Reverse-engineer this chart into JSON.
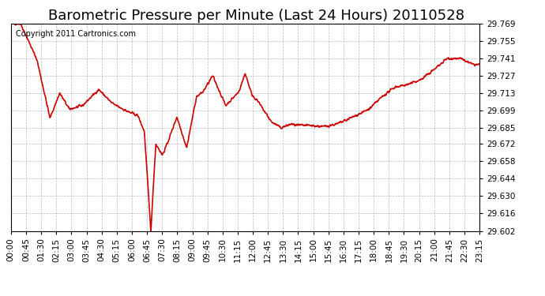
{
  "title": "Barometric Pressure per Minute (Last 24 Hours) 20110528",
  "copyright_text": "Copyright 2011 Cartronics.com",
  "line_color": "#cc0000",
  "bg_color": "#ffffff",
  "plot_bg_color": "#ffffff",
  "grid_color": "#aaaaaa",
  "y_min": 29.602,
  "y_max": 29.769,
  "y_ticks": [
    29.602,
    29.616,
    29.63,
    29.644,
    29.658,
    29.672,
    29.685,
    29.699,
    29.713,
    29.727,
    29.741,
    29.755,
    29.769
  ],
  "x_tick_labels": [
    "00:00",
    "00:45",
    "01:30",
    "02:15",
    "03:00",
    "03:45",
    "04:30",
    "05:15",
    "06:00",
    "06:45",
    "07:30",
    "08:15",
    "09:00",
    "09:45",
    "10:30",
    "11:15",
    "12:00",
    "12:45",
    "13:30",
    "14:15",
    "15:00",
    "15:45",
    "16:30",
    "17:15",
    "18:00",
    "18:45",
    "19:30",
    "20:15",
    "21:00",
    "21:45",
    "22:30",
    "23:15"
  ],
  "title_fontsize": 13,
  "tick_fontsize": 7.5,
  "copyright_fontsize": 7,
  "line_width": 1.2
}
